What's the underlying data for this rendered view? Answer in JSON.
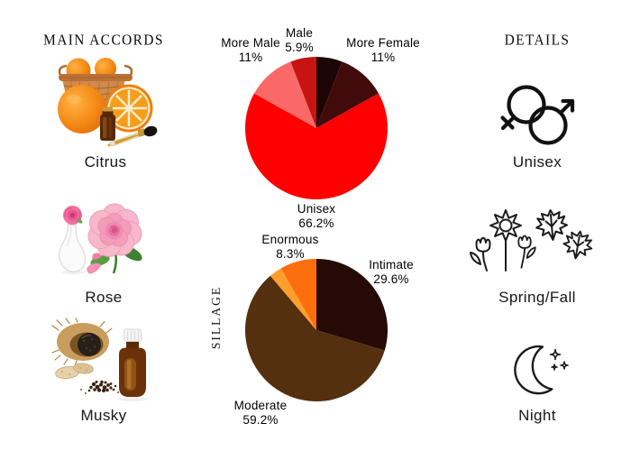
{
  "accords_panel": {
    "heading": "MAIN ACCORDS",
    "items": [
      {
        "label": "Citrus",
        "image": "citrus-oranges-essential-oil-photo"
      },
      {
        "label": "Rose",
        "image": "pink-rose-white-vase-photo"
      },
      {
        "label": "Musky",
        "image": "musk-pod-amber-bottle-photo"
      }
    ]
  },
  "details_panel": {
    "heading": "DETAILS",
    "items": [
      {
        "label": "Unisex",
        "icon": "unisex-gender-icon"
      },
      {
        "label": "Spring/Fall",
        "icon": "spring-fall-flowers-maple-icon"
      },
      {
        "label": "Night",
        "icon": "night-crescent-moon-icon"
      }
    ]
  },
  "chart_data": [
    {
      "type": "pie",
      "name": "gender-votes",
      "title": "",
      "start_angle_deg": 0,
      "direction": "clockwise",
      "legend_position": "none",
      "slices": [
        {
          "label": "",
          "value": 5.9,
          "color": "#1e0505",
          "pct_label": ""
        },
        {
          "label": "More Female",
          "value": 11.0,
          "color": "#420b0b",
          "pct_label": "11%"
        },
        {
          "label": "Unisex",
          "value": 66.2,
          "color": "#fe0000",
          "pct_label": "66.2%"
        },
        {
          "label": "More Male",
          "value": 11.0,
          "color": "#fa6868",
          "pct_label": "11%"
        },
        {
          "label": "Male",
          "value": 5.9,
          "color": "#c91212",
          "pct_label": "5.9%"
        }
      ]
    },
    {
      "type": "pie",
      "name": "sillage-votes",
      "title": "",
      "ylabel": "SILLAGE",
      "start_angle_deg": 0,
      "direction": "clockwise",
      "legend_position": "none",
      "slices": [
        {
          "label": "Intimate",
          "value": 29.6,
          "color": "#260a06",
          "pct_label": "29.6%"
        },
        {
          "label": "Moderate",
          "value": 59.2,
          "color": "#54300f",
          "pct_label": "59.2%"
        },
        {
          "label": "",
          "value": 2.9,
          "color": "#fe9f2b",
          "pct_label": ""
        },
        {
          "label": "Enormous",
          "value": 8.3,
          "color": "#fd6e0e",
          "pct_label": "8.3%"
        }
      ]
    }
  ]
}
